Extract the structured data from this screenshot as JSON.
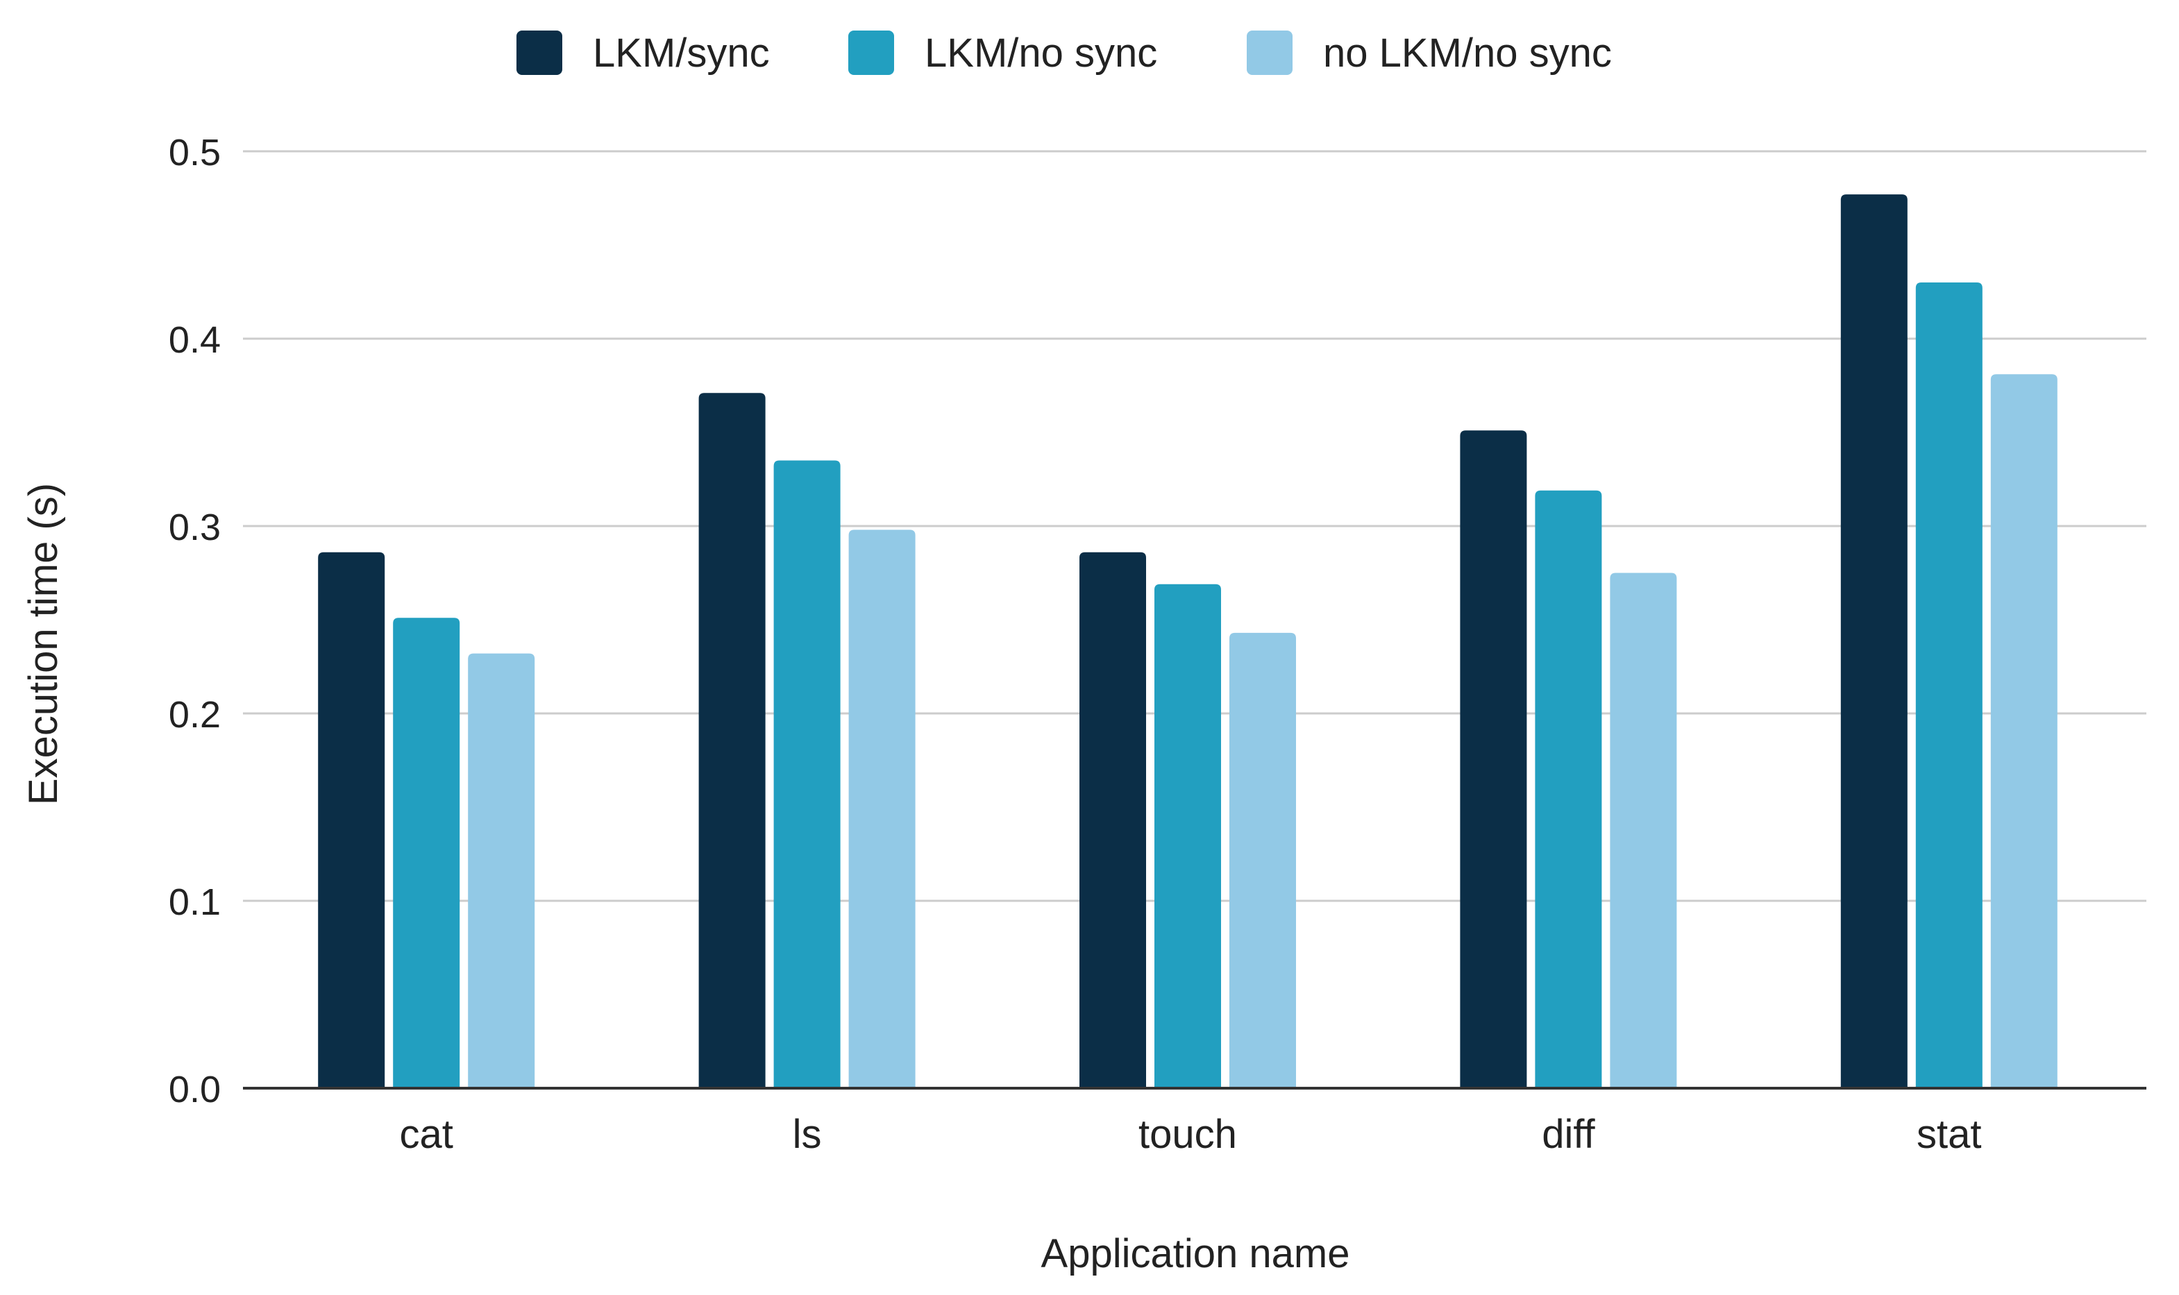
{
  "chart_data": {
    "type": "bar",
    "title": "",
    "xlabel": "Application name",
    "ylabel": "Execution time (s)",
    "ylim": [
      0,
      0.5
    ],
    "yticks": [
      "0.0",
      "0.1",
      "0.2",
      "0.3",
      "0.4",
      "0.5"
    ],
    "grid": true,
    "legend_position": "top",
    "categories": [
      "cat",
      "ls",
      "touch",
      "diff",
      "stat"
    ],
    "series": [
      {
        "name": "LKM/sync",
        "color": "#0b2e47",
        "values": [
          0.286,
          0.371,
          0.286,
          0.351,
          0.477
        ]
      },
      {
        "name": "LKM/no sync",
        "color": "#229fc0",
        "values": [
          0.251,
          0.335,
          0.269,
          0.319,
          0.43
        ]
      },
      {
        "name": "no LKM/no sync",
        "color": "#92c9e6",
        "values": [
          0.232,
          0.298,
          0.243,
          0.275,
          0.381
        ]
      }
    ]
  }
}
